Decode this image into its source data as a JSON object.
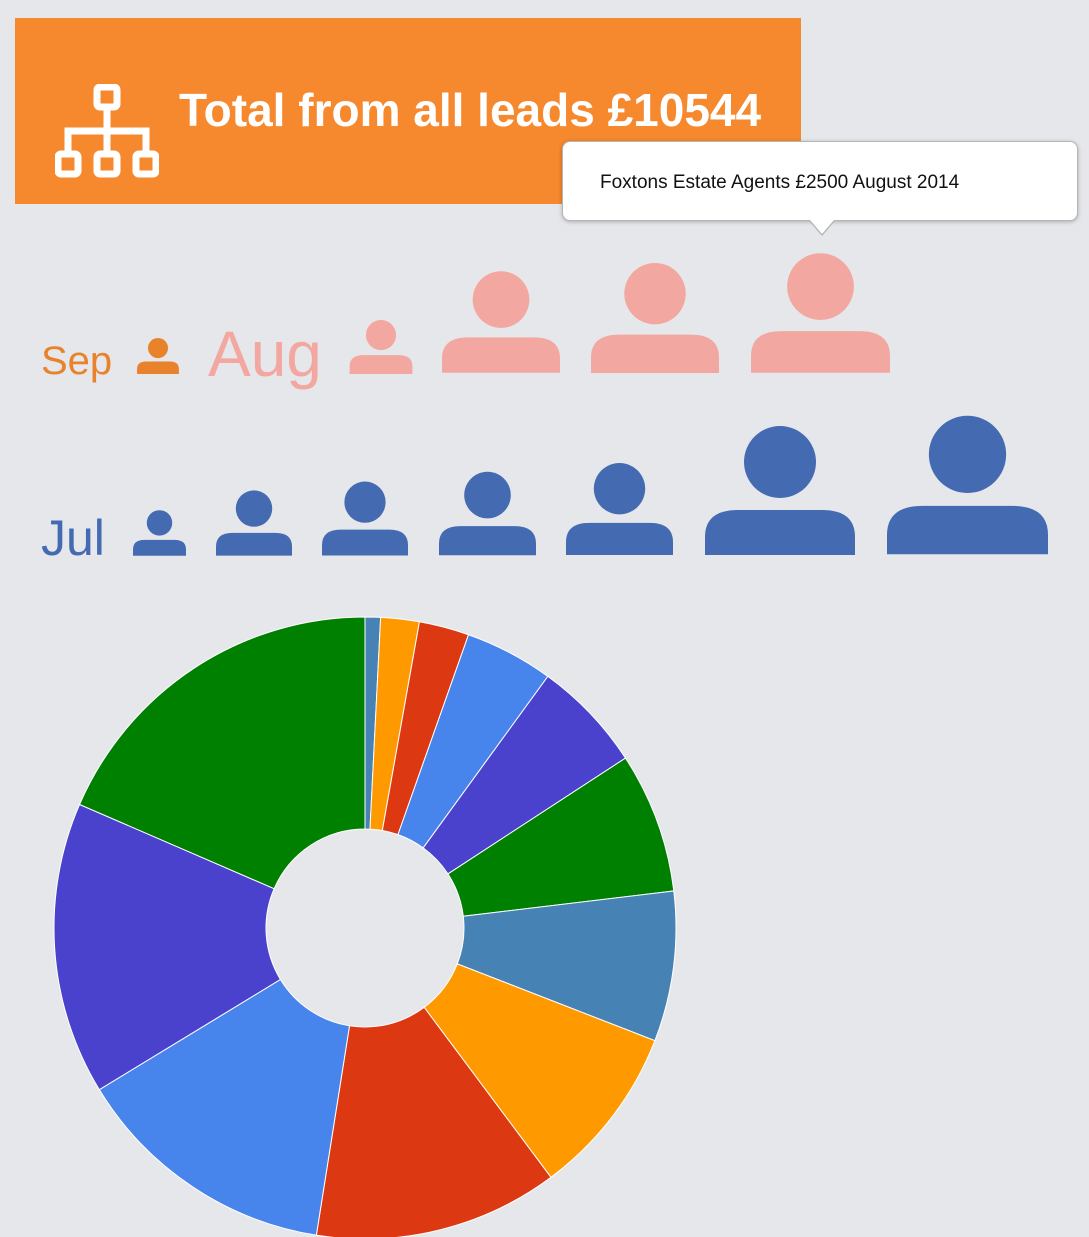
{
  "header": {
    "title": "Total from all leads £10544",
    "icon": "sitemap-icon",
    "background": "#f6882e"
  },
  "tooltip": {
    "text": "Foxtons Estate Agents £2500 August 2014"
  },
  "months": [
    {
      "label": "Sep",
      "color": "#e8832c",
      "leads": 1
    },
    {
      "label": "Aug",
      "color": "#f2a8a0",
      "leads": 4
    },
    {
      "label": "Jul",
      "color": "#446ab2",
      "leads": 7
    }
  ],
  "person_icon": "person-icon",
  "chart_data": {
    "type": "pie",
    "donut": true,
    "title": "",
    "slices": [
      {
        "value": 0.8,
        "color": "#4682b4"
      },
      {
        "value": 2.0,
        "color": "#ff9900"
      },
      {
        "value": 2.6,
        "color": "#dc3912"
      },
      {
        "value": 4.6,
        "color": "#4785ec"
      },
      {
        "value": 5.8,
        "color": "#4a41cc"
      },
      {
        "value": 7.3,
        "color": "#008000"
      },
      {
        "value": 7.8,
        "color": "#4682b4"
      },
      {
        "value": 8.9,
        "color": "#ff9900"
      },
      {
        "value": 12.7,
        "color": "#dc3912"
      },
      {
        "value": 13.8,
        "color": "#4785ec"
      },
      {
        "value": 15.2,
        "color": "#4a41cc"
      },
      {
        "value": 18.5,
        "color": "#008000"
      }
    ]
  }
}
